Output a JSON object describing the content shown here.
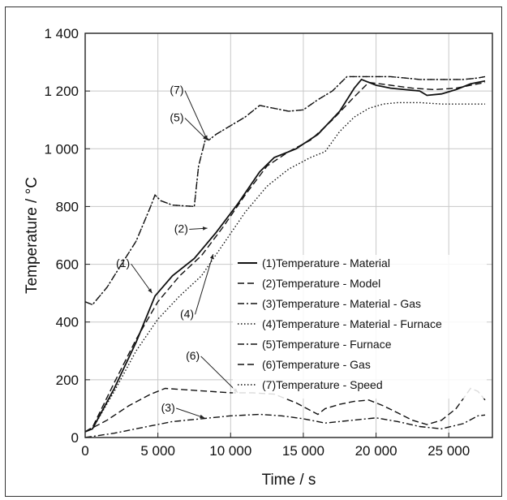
{
  "chart_data": {
    "type": "line",
    "xlabel": "Time / s",
    "ylabel": "Temperature / °C",
    "xlim": [
      0,
      28000
    ],
    "ylim": [
      0,
      1400
    ],
    "xticks": [
      0,
      5000,
      10000,
      15000,
      20000,
      25000
    ],
    "xtick_labels": [
      "0",
      "5 000",
      "10 000",
      "15 000",
      "20 000",
      "25 000"
    ],
    "yticks": [
      0,
      200,
      400,
      600,
      800,
      1000,
      1200,
      1400
    ],
    "ytick_labels": [
      "0",
      "200",
      "400",
      "600",
      "800",
      "1 000",
      "1 200",
      "1 400"
    ],
    "grid": true,
    "legend_position": "center-right",
    "series": [
      {
        "name": "(1)Temperature - Material",
        "style": "solid",
        "color": "#111111",
        "x": [
          0,
          500,
          2000,
          3500,
          4800,
          6000,
          7500,
          9000,
          10500,
          12000,
          13000,
          14500,
          16000,
          17500,
          18500,
          19000,
          20000,
          21000,
          22000,
          23000,
          23500,
          24500,
          25500,
          26500,
          27500
        ],
        "y": [
          20,
          30,
          170,
          330,
          490,
          560,
          620,
          710,
          810,
          920,
          970,
          1000,
          1050,
          1130,
          1210,
          1240,
          1220,
          1210,
          1205,
          1200,
          1185,
          1190,
          1205,
          1225,
          1235
        ]
      },
      {
        "name": "(2)Temperature - Model",
        "style": "dashed",
        "color": "#111111",
        "x": [
          0,
          500,
          2000,
          3500,
          5000,
          6500,
          8000,
          9500,
          11000,
          12500,
          14000,
          15500,
          17000,
          18500,
          19500,
          21000,
          22500,
          24000,
          25500,
          27000,
          27500
        ],
        "y": [
          20,
          35,
          190,
          340,
          470,
          560,
          630,
          730,
          840,
          940,
          990,
          1030,
          1100,
          1180,
          1230,
          1220,
          1210,
          1205,
          1210,
          1225,
          1230
        ]
      },
      {
        "name": "(3)Temperature - Material - Gas",
        "style": "dashdot",
        "color": "#111111",
        "x": [
          0,
          2000,
          4000,
          6000,
          8000,
          10000,
          12000,
          13500,
          15000,
          16500,
          18000,
          20000,
          21500,
          23000,
          24500,
          26000,
          27000,
          27500
        ],
        "y": [
          0,
          15,
          35,
          55,
          65,
          75,
          80,
          75,
          65,
          50,
          58,
          68,
          55,
          38,
          30,
          48,
          75,
          78
        ]
      },
      {
        "name": "(4)Temperature - Material - Furnace",
        "style": "dotted",
        "color": "#111111",
        "x": [
          0,
          500,
          2000,
          3500,
          5000,
          6500,
          8000,
          9500,
          11000,
          12500,
          14000,
          15500,
          16500,
          17500,
          18500,
          19500,
          20500,
          21500,
          23000,
          24500,
          26000,
          27500
        ],
        "y": [
          20,
          30,
          160,
          300,
          410,
          490,
          560,
          670,
          780,
          870,
          930,
          970,
          990,
          1060,
          1110,
          1140,
          1155,
          1160,
          1160,
          1155,
          1155,
          1155
        ]
      },
      {
        "name": "(5)Temperature - Furnace",
        "style": "dashdot",
        "color": "#111111",
        "x": [
          0,
          500,
          1500,
          2500,
          3500,
          4500,
          4800,
          5200,
          6000,
          7500,
          7800,
          8300,
          8500,
          9000,
          10000,
          11000,
          12000,
          13000,
          14000,
          15000,
          16000,
          17000,
          18000,
          19000,
          20000,
          21000,
          22000,
          23000,
          24000,
          25000,
          26000,
          27000,
          27500
        ],
        "y": [
          470,
          460,
          520,
          600,
          680,
          800,
          840,
          820,
          805,
          800,
          940,
          1040,
          1030,
          1050,
          1080,
          1110,
          1150,
          1140,
          1130,
          1135,
          1170,
          1200,
          1250,
          1250,
          1250,
          1250,
          1245,
          1240,
          1240,
          1240,
          1240,
          1245,
          1250
        ]
      },
      {
        "name": "(6)Temperature - Gas",
        "style": "dashed",
        "color": "#111111",
        "x": [
          0,
          1500,
          3000,
          4500,
          5500,
          7000,
          8500,
          10000,
          11500,
          13000,
          14500,
          16000,
          16500,
          17500,
          18500,
          19500,
          20500,
          21500,
          22500,
          23500,
          24500,
          25500,
          26500,
          27000,
          27500
        ],
        "y": [
          20,
          60,
          110,
          150,
          170,
          165,
          160,
          155,
          155,
          150,
          120,
          80,
          100,
          115,
          125,
          130,
          110,
          85,
          60,
          45,
          60,
          100,
          170,
          160,
          130
        ]
      },
      {
        "name": "(7)Temperature - Speed",
        "style": "dotted",
        "color": "#111111",
        "x": [
          0,
          500,
          1500,
          2500,
          3500,
          4500,
          4800,
          5200,
          6000,
          7500,
          7800,
          8300,
          8500,
          9000,
          10000,
          11000,
          12000,
          13000,
          14000,
          15000,
          16000,
          17000,
          18000,
          19000,
          20000,
          21000,
          22000,
          23000,
          24000,
          25000,
          26000,
          27000,
          27500
        ],
        "y": [
          470,
          460,
          520,
          600,
          680,
          800,
          840,
          820,
          805,
          800,
          940,
          1040,
          1030,
          1050,
          1080,
          1110,
          1150,
          1140,
          1130,
          1135,
          1170,
          1200,
          1250,
          1250,
          1250,
          1250,
          1245,
          1240,
          1240,
          1240,
          1240,
          1245,
          1250
        ]
      }
    ],
    "annotations": [
      {
        "text": "(1)",
        "x": 2600,
        "y": 590,
        "arrow_to": [
          4600,
          500
        ]
      },
      {
        "text": "(2)",
        "x": 6600,
        "y": 710,
        "arrow_to": [
          8400,
          725
        ]
      },
      {
        "text": "(3)",
        "x": 5700,
        "y": 90,
        "arrow_to": [
          8200,
          68
        ]
      },
      {
        "text": "(4)",
        "x": 7000,
        "y": 415,
        "arrow_to": [
          8800,
          635
        ]
      },
      {
        "text": "(5)",
        "x": 6300,
        "y": 1095,
        "arrow_to": [
          8400,
          1030
        ]
      },
      {
        "text": "(6)",
        "x": 7400,
        "y": 270,
        "arrow_to": [
          10500,
          155
        ]
      },
      {
        "text": "(7)",
        "x": 6300,
        "y": 1190,
        "arrow_to": [
          8400,
          1030
        ]
      }
    ]
  }
}
